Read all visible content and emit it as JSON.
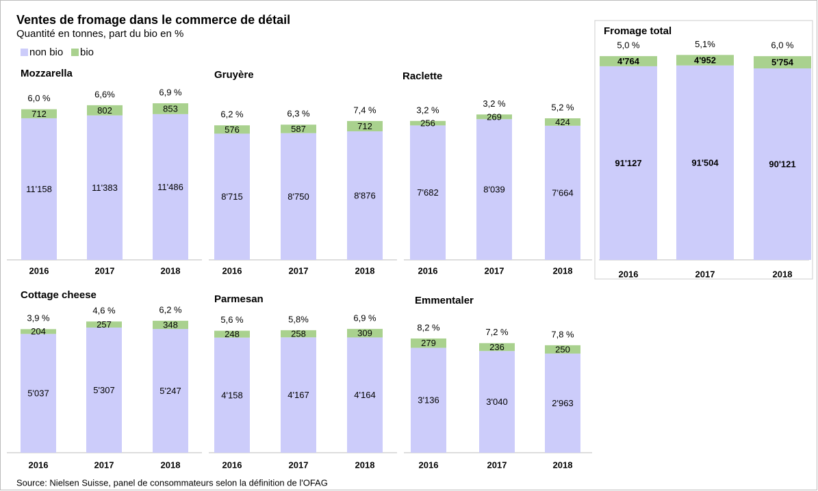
{
  "title": "Ventes de fromage dans le commerce de détail",
  "subtitle": "Quantité  en tonnes,  part du bio en %",
  "source": "Source:  Nielsen Suisse, panel  de  consommateurs  selon la  définition  de  l'OFAG",
  "chart_data": [
    {
      "type": "bar",
      "stacked": true,
      "title": "Mozzarella",
      "categories": [
        "2016",
        "2017",
        "2018"
      ],
      "ylim": [
        0,
        14550
      ],
      "series": [
        {
          "name": "non bio",
          "color": "#ccccfa",
          "values": [
            11158,
            11383,
            11486
          ],
          "value_labels": [
            "11'158",
            "11'383",
            "11'486"
          ]
        },
        {
          "name": "bio",
          "color": "#a9d18e",
          "values": [
            712,
            802,
            853
          ]
        }
      ],
      "annotations": [
        "6,0 %",
        "6,6%",
        "6,9 %"
      ]
    },
    {
      "type": "bar",
      "stacked": true,
      "title": "Gruyère",
      "categories": [
        "2016",
        "2017",
        "2018"
      ],
      "ylim": [
        0,
        12750
      ],
      "series": [
        {
          "name": "non bio",
          "color": "#ccccfa",
          "values": [
            8715,
            8750,
            8876
          ],
          "value_labels": [
            "8'715",
            "8'750",
            "8'876"
          ]
        },
        {
          "name": "bio",
          "color": "#a9d18e",
          "values": [
            576,
            587,
            712
          ]
        }
      ],
      "annotations": [
        "6,2 %",
        "6,3 %",
        "7,4 %"
      ]
    },
    {
      "type": "bar",
      "stacked": true,
      "title": "Raclette",
      "categories": [
        "2016",
        "2017",
        "2018"
      ],
      "ylim": [
        0,
        10550
      ],
      "series": [
        {
          "name": "non bio",
          "color": "#ccccfa",
          "values": [
            7682,
            8039,
            7664
          ],
          "value_labels": [
            "7'682",
            "8'039",
            "7'664"
          ]
        },
        {
          "name": "bio",
          "color": "#a9d18e",
          "values": [
            256,
            269,
            424
          ]
        }
      ],
      "annotations": [
        "3,2 %",
        "3,2 %",
        "5,2 %"
      ]
    },
    {
      "type": "bar",
      "stacked": true,
      "title": "Fromage total",
      "categories": [
        "2016",
        "2017",
        "2018"
      ],
      "ylim": [
        0,
        103000
      ],
      "series": [
        {
          "name": "non bio",
          "color": "#ccccfa",
          "values": [
            91127,
            91504,
            90121
          ],
          "value_labels": [
            "91'127",
            "91'504",
            "90'121"
          ]
        },
        {
          "name": "bio",
          "color": "#a9d18e",
          "values": [
            4764,
            4952,
            5754
          ],
          "value_labels": [
            "4'764",
            "4'952",
            "5'754"
          ]
        }
      ],
      "annotations": [
        "5,0 %",
        "5,1%",
        "6,0 %"
      ]
    },
    {
      "type": "bar",
      "stacked": true,
      "title": "Cottage cheese",
      "categories": [
        "2016",
        "2017",
        "2018"
      ],
      "ylim": [
        0,
        7830
      ],
      "series": [
        {
          "name": "non bio",
          "color": "#ccccfa",
          "values": [
            5037,
            5307,
            5247
          ],
          "value_labels": [
            "5'037",
            "5'307",
            "5'247"
          ]
        },
        {
          "name": "bio",
          "color": "#a9d18e",
          "values": [
            204,
            257,
            348
          ]
        }
      ],
      "annotations": [
        "3,9 %",
        "4,6 %",
        "6,2 %"
      ]
    },
    {
      "type": "bar",
      "stacked": true,
      "title": "Parmesan",
      "categories": [
        "2016",
        "2017",
        "2018"
      ],
      "ylim": [
        0,
        6670
      ],
      "series": [
        {
          "name": "non bio",
          "color": "#ccccfa",
          "values": [
            4158,
            4167,
            4164
          ],
          "value_labels": [
            "4'158",
            "4'167",
            "4'164"
          ]
        },
        {
          "name": "bio",
          "color": "#a9d18e",
          "values": [
            248,
            258,
            309
          ]
        }
      ],
      "annotations": [
        "5,6 %",
        "5,8%",
        "6,9 %"
      ]
    },
    {
      "type": "bar",
      "stacked": true,
      "title": "Emmentaler",
      "categories": [
        "2016",
        "2017",
        "2018"
      ],
      "ylim": [
        0,
        5520
      ],
      "series": [
        {
          "name": "non bio",
          "color": "#ccccfa",
          "values": [
            3136,
            3040,
            2963
          ],
          "value_labels": [
            "3'136",
            "3'040",
            "2'963"
          ]
        },
        {
          "name": "bio",
          "color": "#a9d18e",
          "values": [
            279,
            236,
            250
          ]
        }
      ],
      "annotations": [
        "8,2 %",
        "7,2 %",
        "7,8 %"
      ]
    }
  ]
}
